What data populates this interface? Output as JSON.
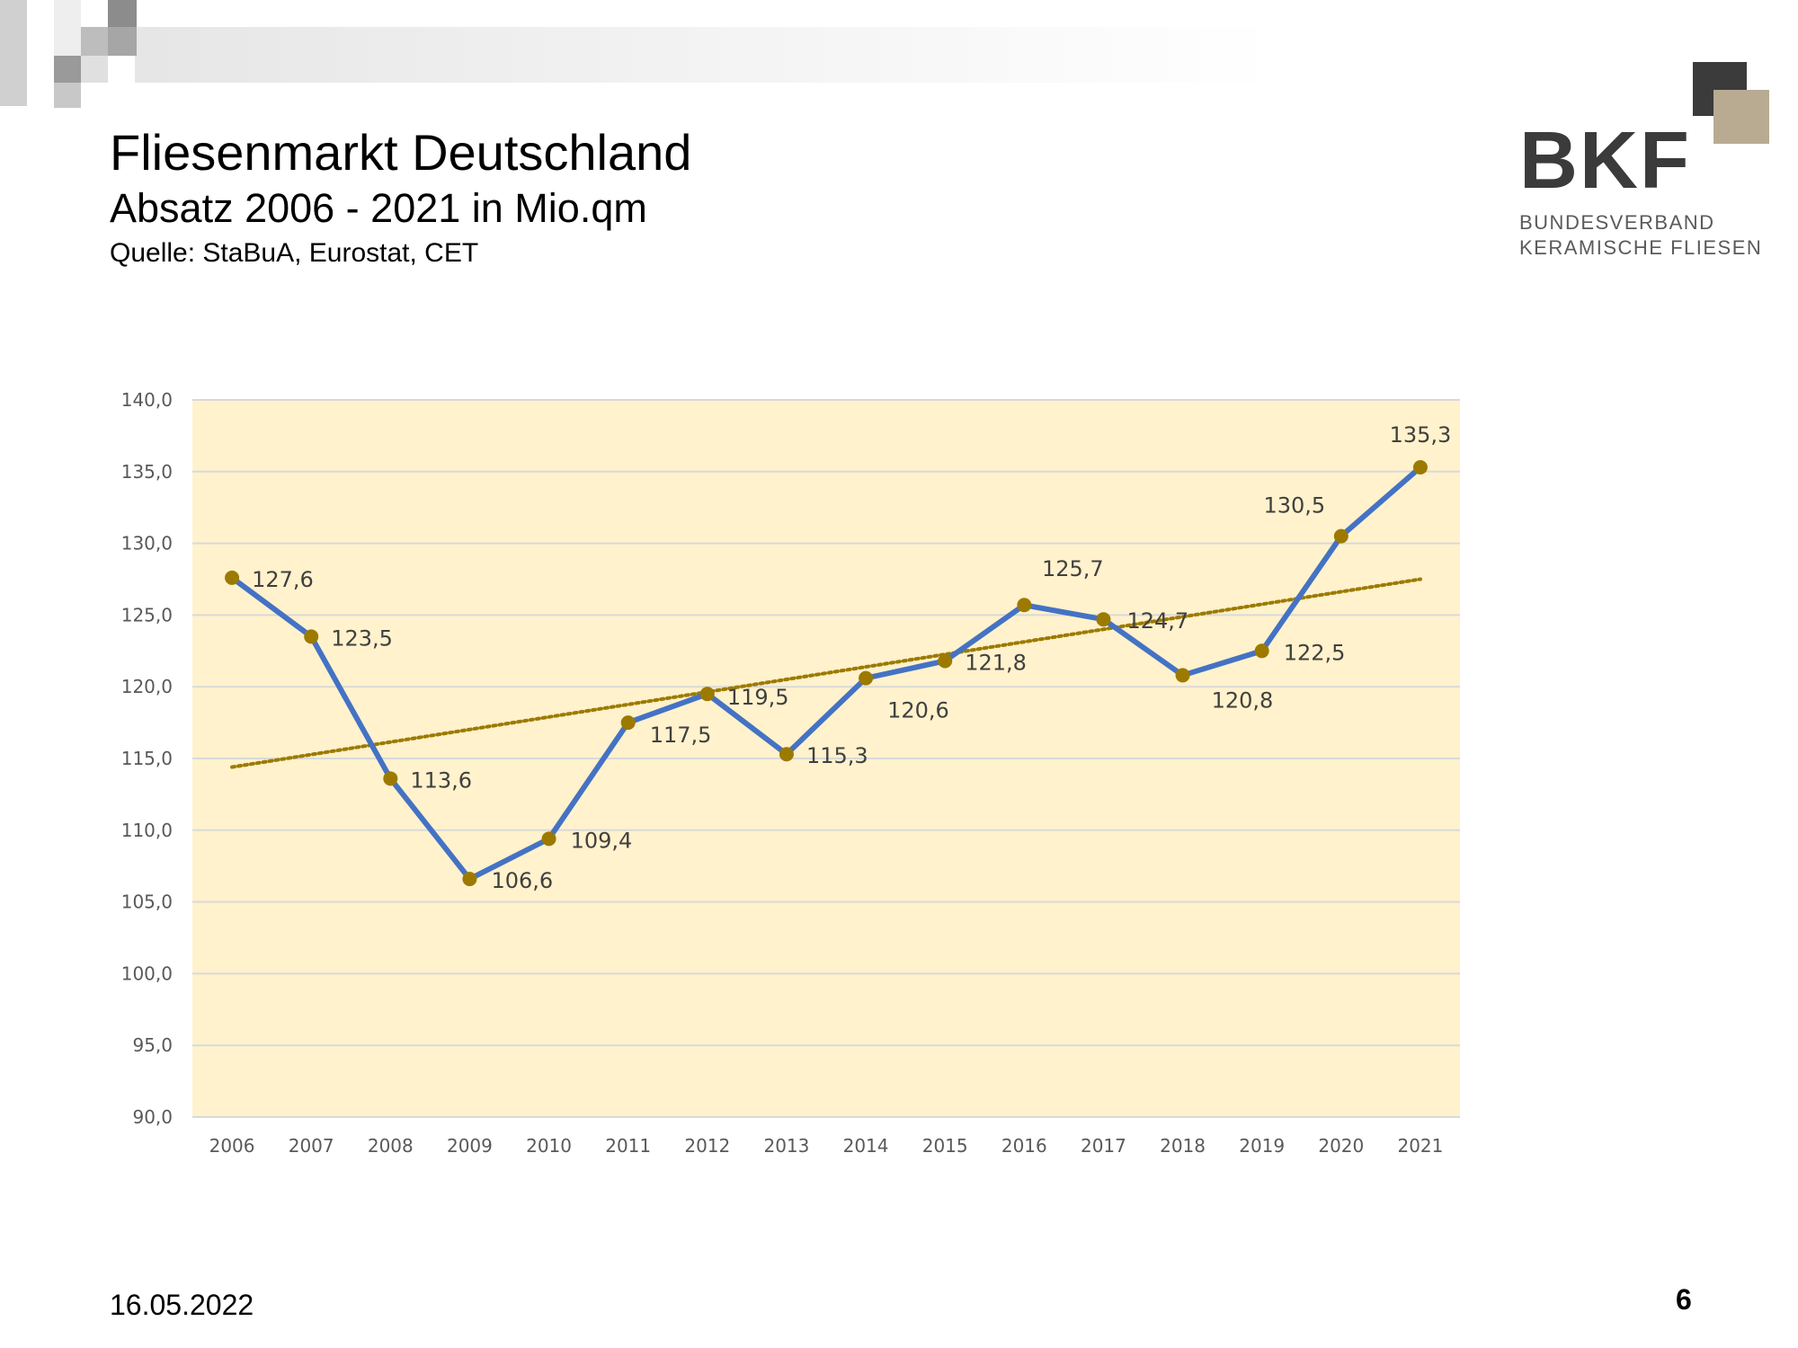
{
  "slide": {
    "title": "Fliesenmarkt Deutschland",
    "subtitle": "Absatz 2006 - 2021 in Mio.qm",
    "source": "Quelle: StaBuA, Eurostat, CET",
    "date": "16.05.2022",
    "page_number": "6"
  },
  "logo": {
    "abbreviation": "BKF",
    "line1": "BUNDESVERBAND",
    "line2": "KERAMISCHE FLIESEN"
  },
  "colors": {
    "plot_background": "#FFF2CC",
    "series_line": "#4472C4",
    "marker": "#9C7A00",
    "trendline": "#9C7A00",
    "gridline": "#D9D9D9"
  },
  "chart_data": {
    "type": "line",
    "title": "",
    "xlabel": "",
    "ylabel": "",
    "categories": [
      "2006",
      "2007",
      "2008",
      "2009",
      "2010",
      "2011",
      "2012",
      "2013",
      "2014",
      "2015",
      "2016",
      "2017",
      "2018",
      "2019",
      "2020",
      "2021"
    ],
    "series": [
      {
        "values": [
          127.6,
          123.5,
          113.6,
          106.6,
          109.4,
          117.5,
          119.5,
          115.3,
          120.6,
          121.8,
          125.7,
          124.7,
          120.8,
          122.5,
          130.5,
          135.3
        ],
        "data_labels": [
          "127,6",
          "123,5",
          "113,6",
          "106,6",
          "109,4",
          "117,5",
          "119,5",
          "115,3",
          "120,6",
          "121,8",
          "125,7",
          "124,7",
          "120,8",
          "122,5",
          "130,5",
          "135,3"
        ]
      }
    ],
    "trendline": {
      "type": "linear",
      "style": "dotted",
      "start_value": 114.4,
      "end_value": 127.5
    },
    "ylim": [
      90,
      140
    ],
    "y_ticks": [
      90,
      95,
      100,
      105,
      110,
      115,
      120,
      125,
      130,
      135,
      140
    ],
    "y_tick_labels": [
      "90,0",
      "95,0",
      "100,0",
      "105,0",
      "110,0",
      "115,0",
      "120,0",
      "125,0",
      "130,0",
      "135,0",
      "140,0"
    ],
    "grid": true,
    "legend": "none"
  }
}
